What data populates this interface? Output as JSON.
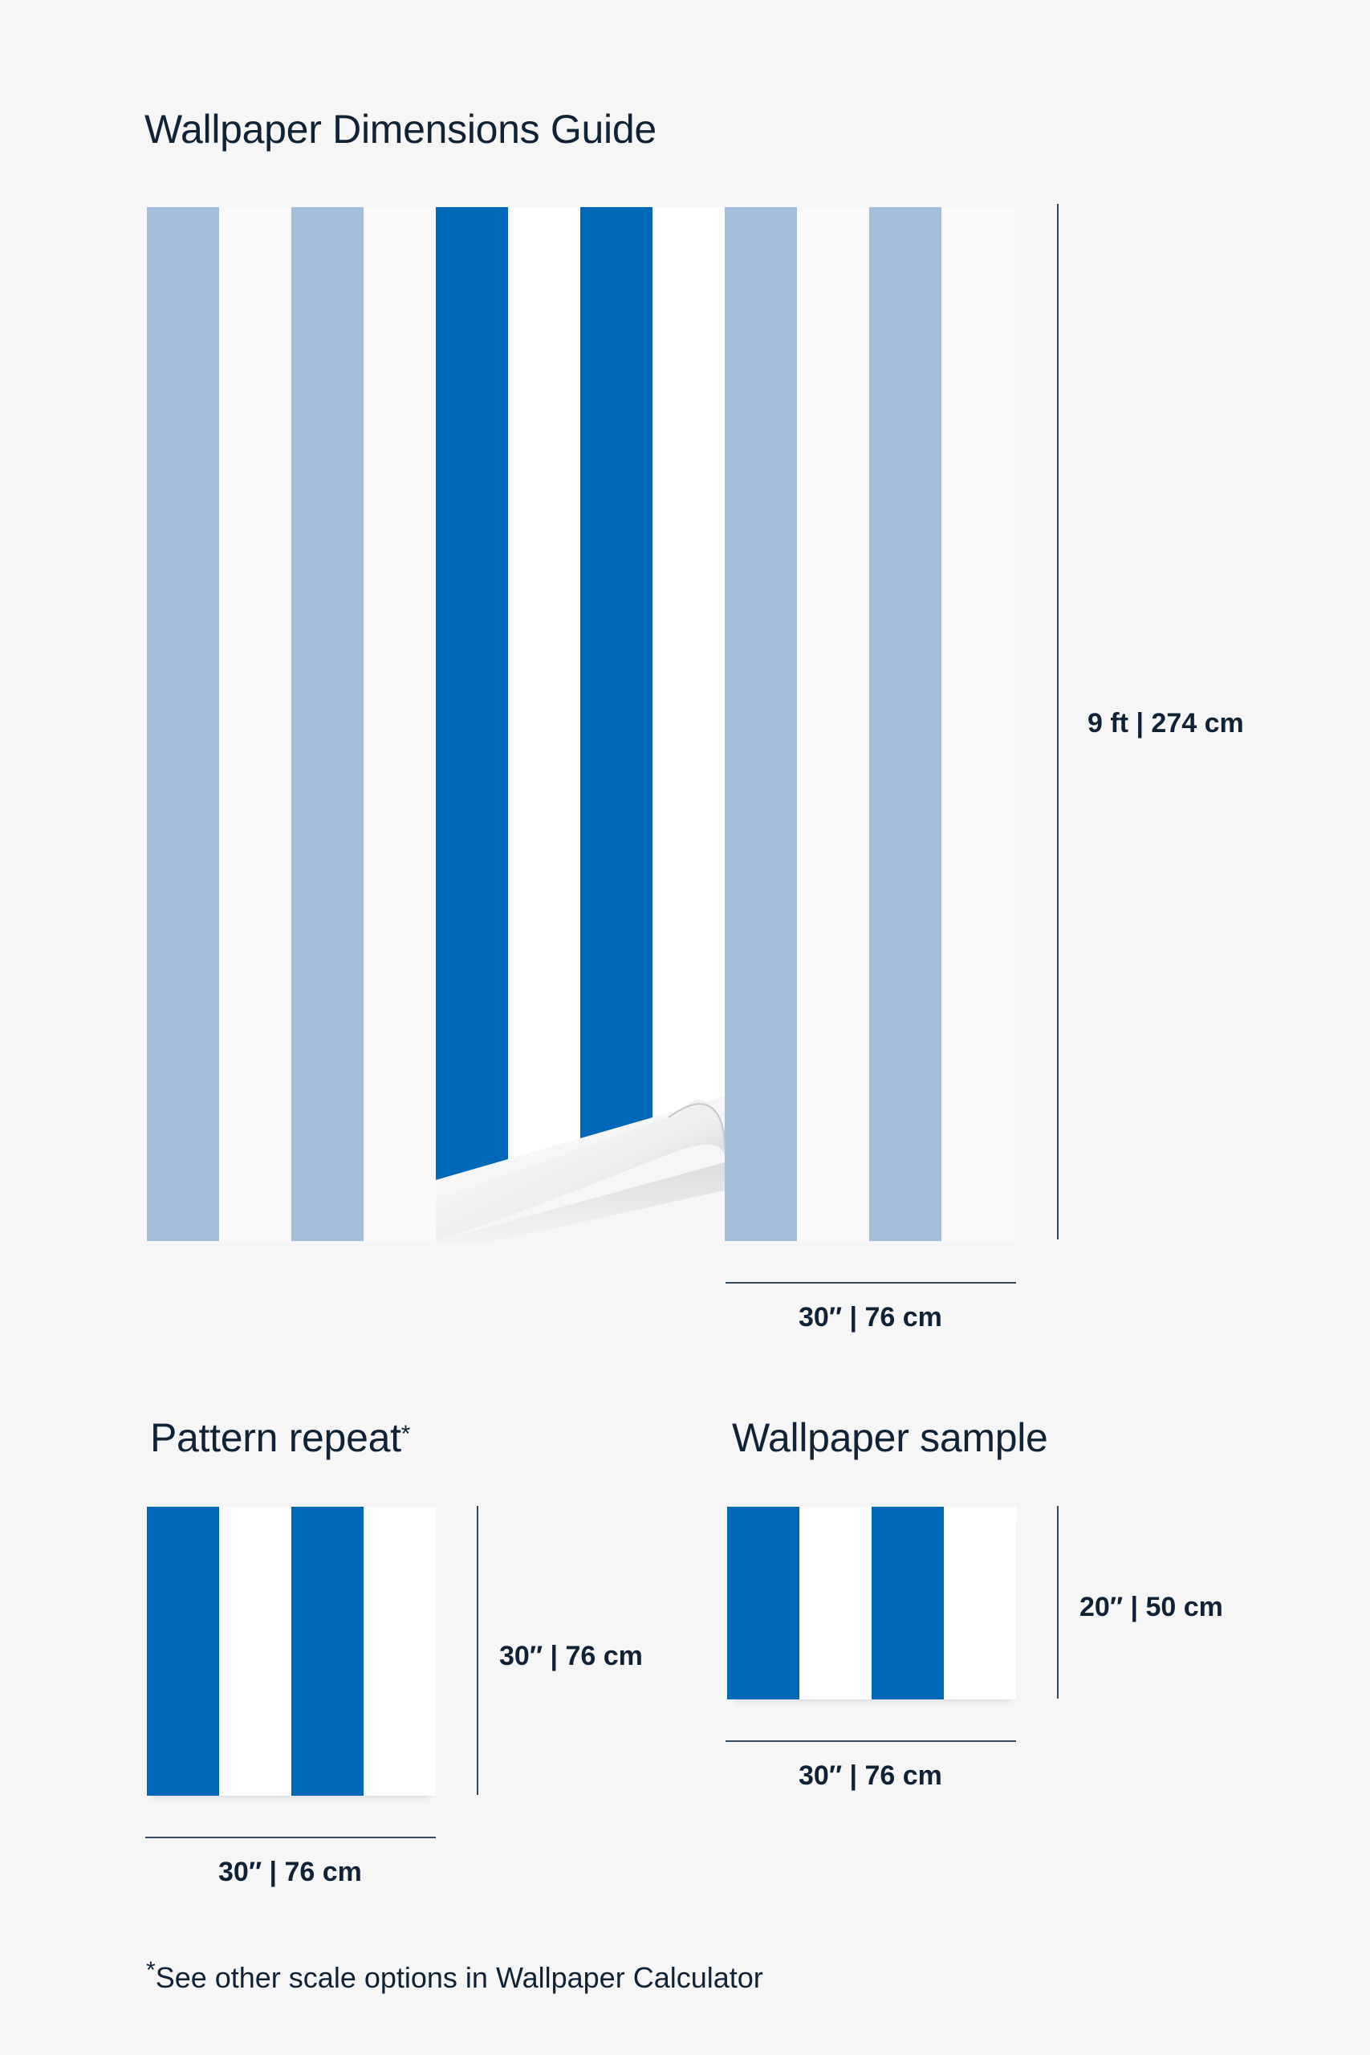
{
  "title": "Wallpaper Dimensions Guide",
  "colors": {
    "background": "#f6f6f6",
    "light_blue": "#a3bfdd",
    "dark_blue": "#0068b8",
    "white": "#fdfdfd",
    "white_faded": "#f9f9f9",
    "text": "#0f2236"
  },
  "roll": {
    "height_label": "9 ft | 274 cm",
    "width_label": "30″ | 76 cm",
    "peel_corner_icon": "page-curl"
  },
  "pattern_repeat": {
    "heading": "Pattern repeat",
    "heading_marker": "*",
    "height_label": "30″ | 76 cm",
    "width_label": "30″ | 76 cm"
  },
  "sample": {
    "heading": "Wallpaper sample",
    "height_label": "20″ | 50 cm",
    "width_label": "30″ | 76 cm"
  },
  "footnote": {
    "marker": "*",
    "text": "See other scale options in Wallpaper Calculator"
  }
}
